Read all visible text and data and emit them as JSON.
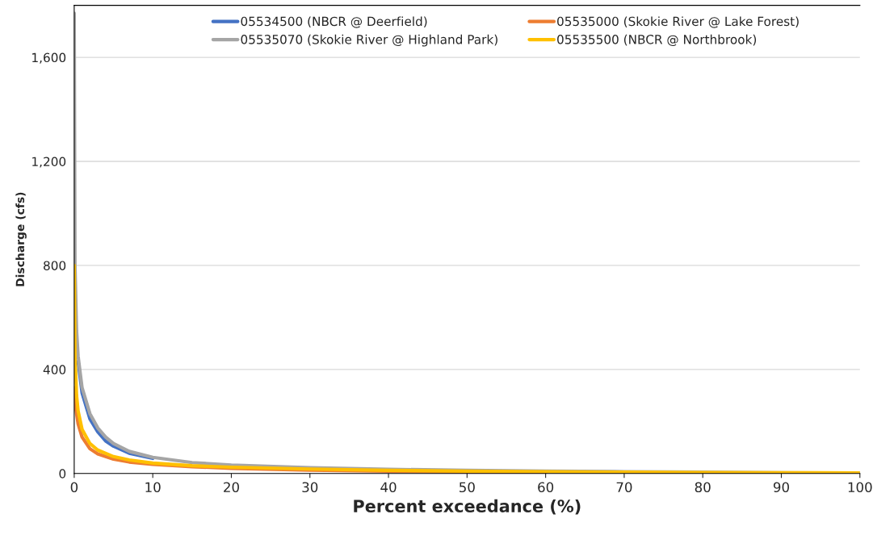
{
  "chart_data": {
    "type": "line",
    "xlabel": "Percent exceedance (%)",
    "ylabel": "Discharge (cfs)",
    "xlim": [
      0,
      100
    ],
    "xticks": [
      0,
      10,
      20,
      30,
      40,
      50,
      60,
      70,
      80,
      90,
      100
    ],
    "ylim": [
      0,
      1800
    ],
    "yticks": [
      0,
      400,
      800,
      {
        "value": 1200,
        "label": "1,200"
      },
      {
        "value": 1600,
        "label": "1,600"
      }
    ],
    "grid": "y",
    "legend": "top",
    "marker": "none",
    "line_style": "solid",
    "series": [
      {
        "name": "05534500 (NBCR @ Deerfield)",
        "color": "#4472c4",
        "x": [
          0.5,
          1,
          2,
          3,
          4,
          5,
          7,
          10
        ],
        "values": [
          430,
          310,
          210,
          160,
          125,
          105,
          78,
          58
        ]
      },
      {
        "name": "05535000 (Skokie River @ Lake Forest)",
        "color": "#ed7d31",
        "x": [
          0,
          0.2,
          0.5,
          1,
          2,
          3,
          5,
          7,
          10,
          15,
          20,
          30,
          40,
          50,
          60
        ],
        "values": [
          330,
          250,
          190,
          140,
          95,
          75,
          55,
          44,
          35,
          26,
          20,
          13,
          9,
          6,
          4
        ]
      },
      {
        "name": "05535070 (Skokie River @ Highland Park)",
        "color": "#a5a5a5",
        "x": [
          0,
          0.1,
          0.3,
          0.5,
          1,
          2,
          3,
          4,
          5,
          7,
          10,
          15,
          20,
          30,
          40,
          50,
          60,
          70,
          80,
          90,
          100
        ],
        "values": [
          1770,
          800,
          550,
          450,
          330,
          230,
          175,
          140,
          115,
          85,
          62,
          42,
          32,
          22,
          16,
          12,
          9,
          7,
          5,
          3,
          1
        ]
      },
      {
        "name": "05535500 (NBCR @ Northbrook)",
        "color": "#ffc000",
        "x": [
          0,
          0.1,
          0.3,
          0.5,
          1,
          2,
          3,
          5,
          7,
          10,
          15,
          20,
          30,
          40,
          50,
          60,
          70,
          80,
          90,
          100
        ],
        "values": [
          800,
          450,
          300,
          240,
          170,
          115,
          90,
          65,
          52,
          40,
          30,
          24,
          17,
          12,
          9,
          7,
          5,
          4,
          3,
          2
        ]
      }
    ]
  }
}
